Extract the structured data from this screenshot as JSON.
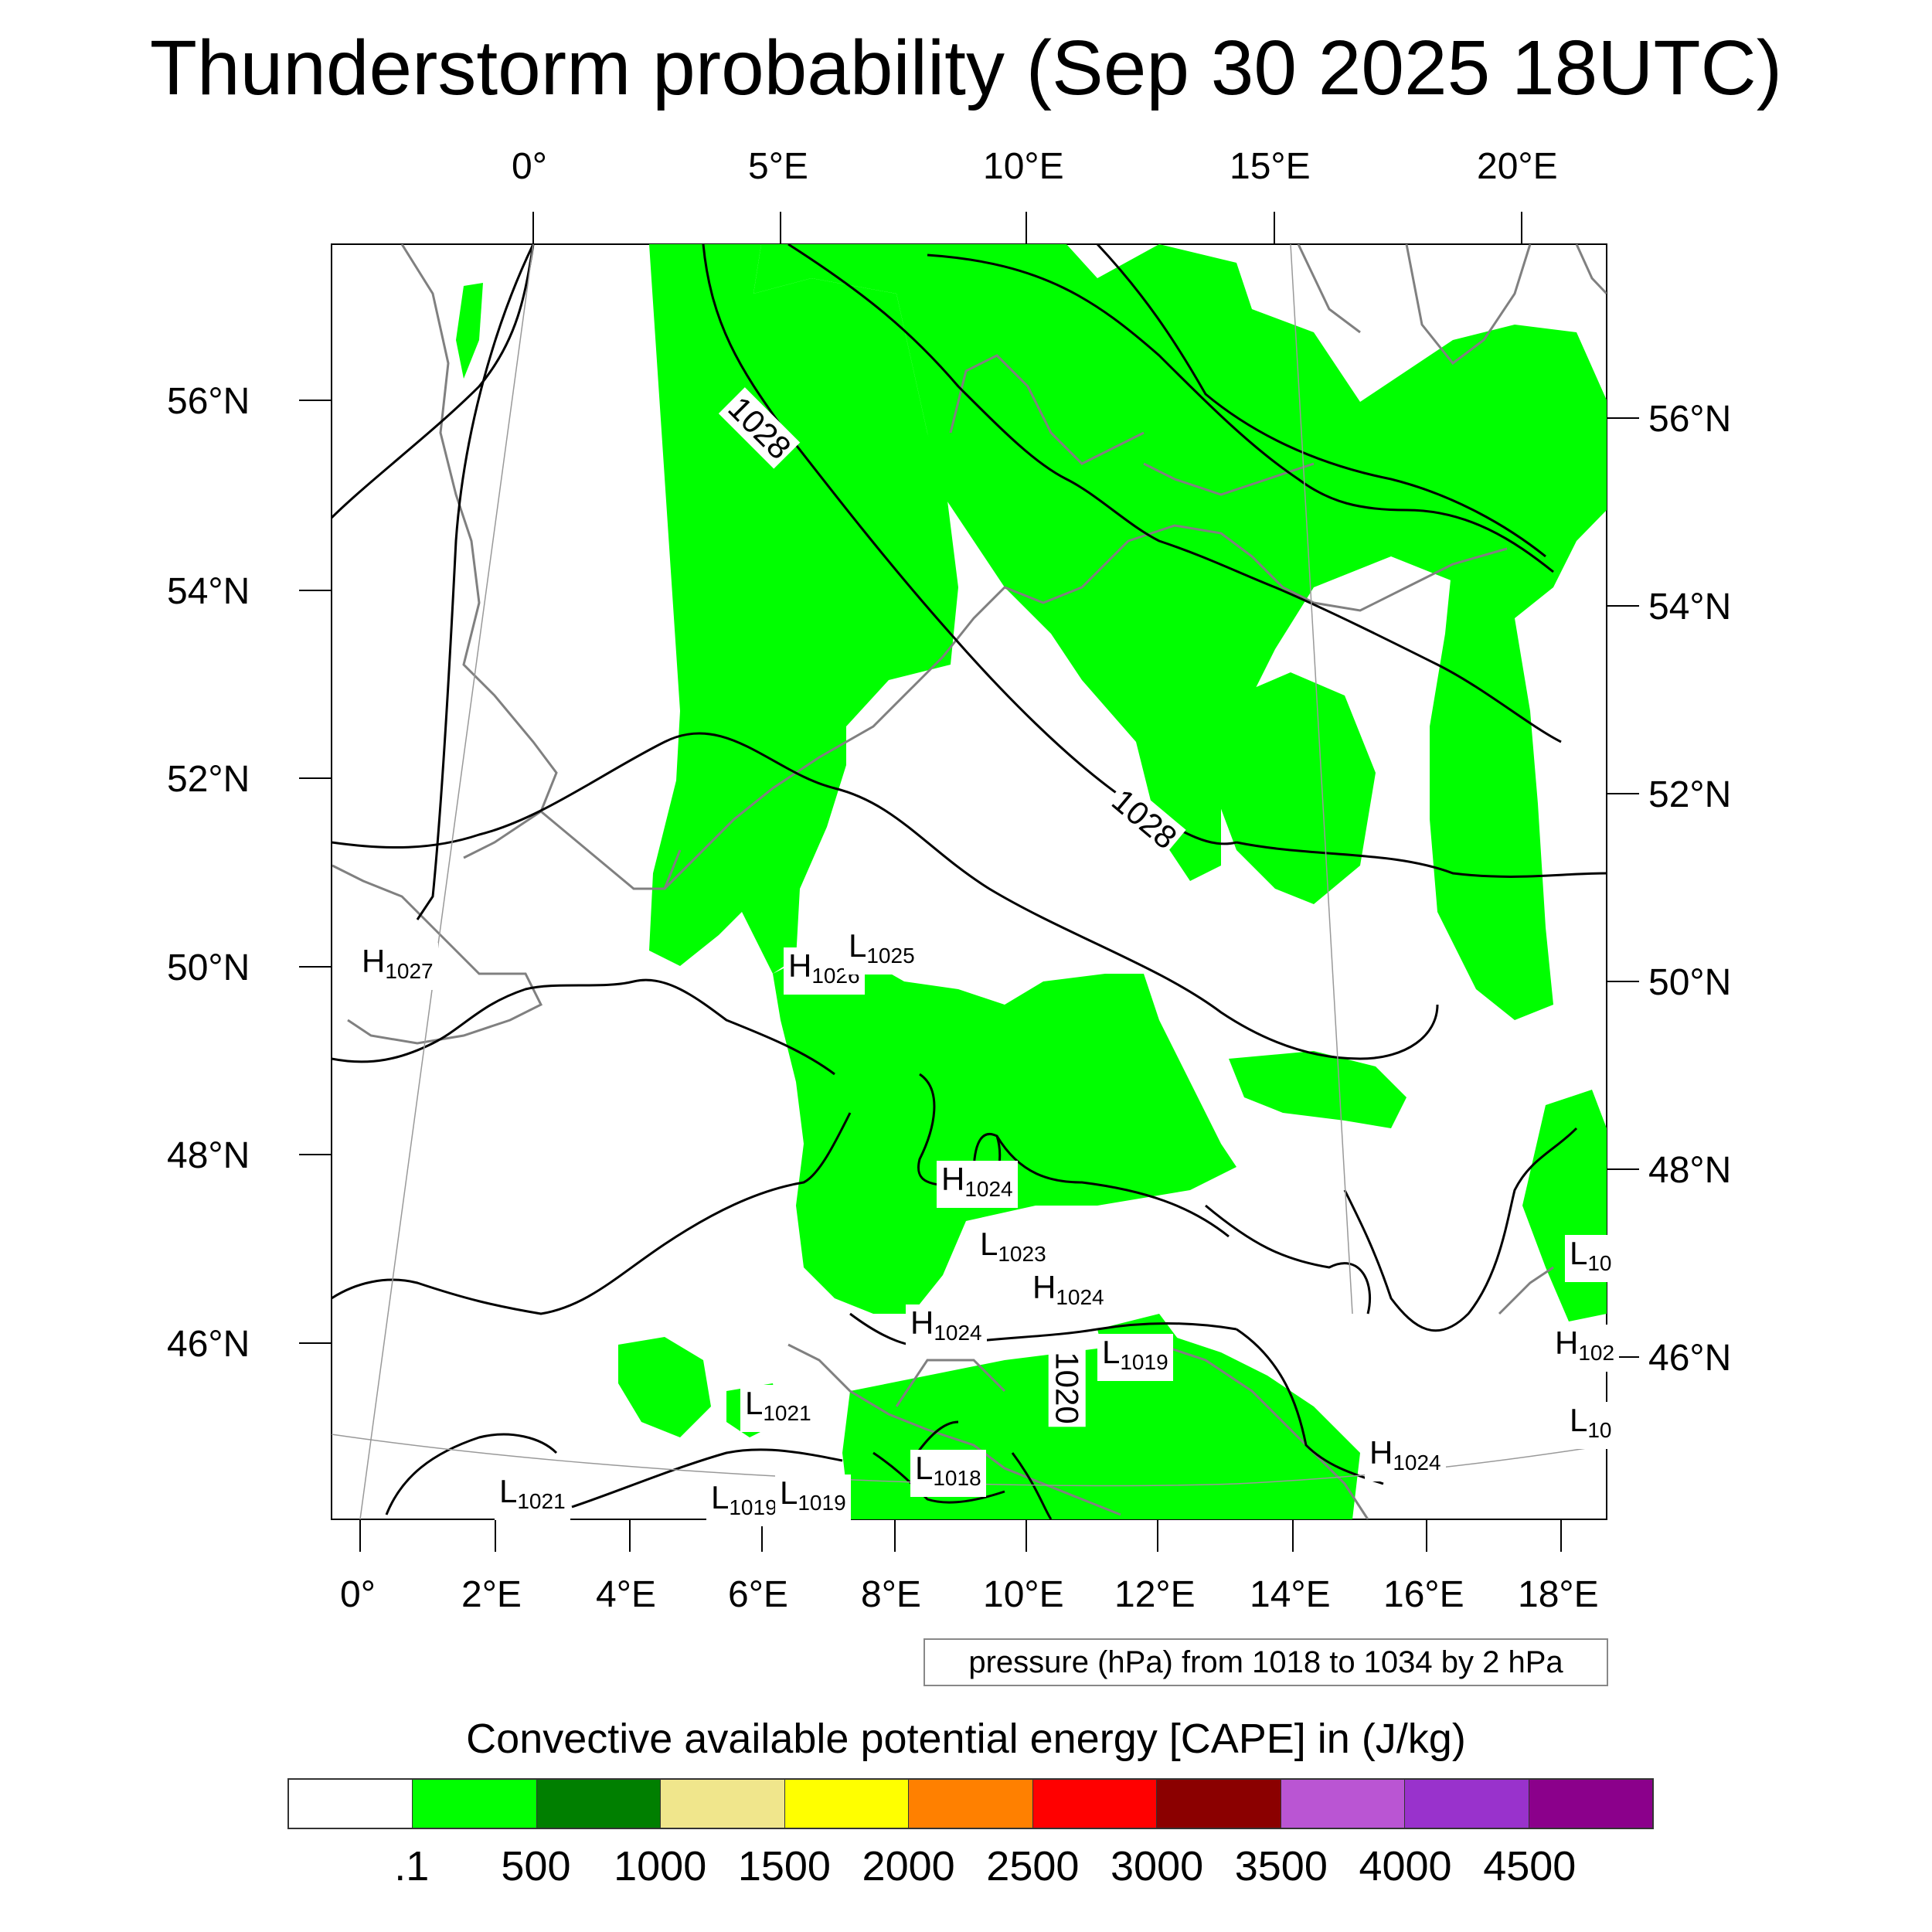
{
  "title": "Thunderstorm probability (Sep 30 2025 18UTC)",
  "map": {
    "top_lon_labels": [
      "0°",
      "5°E",
      "10°E",
      "15°E",
      "20°E"
    ],
    "left_lat_labels": [
      "56°N",
      "54°N",
      "52°N",
      "50°N",
      "48°N",
      "46°N"
    ],
    "right_lat_labels": [
      "56°N",
      "54°N",
      "52°N",
      "50°N",
      "48°N",
      "46°N"
    ],
    "bottom_lon_labels": [
      "0°",
      "2°E",
      "4°E",
      "6°E",
      "8°E",
      "10°E",
      "12°E",
      "14°E",
      "16°E",
      "18°E"
    ],
    "pressure_systems": [
      {
        "type": "H",
        "value": "1027"
      },
      {
        "type": "H",
        "value": "1026"
      },
      {
        "type": "L",
        "value": "1025"
      },
      {
        "type": "H",
        "value": "1024"
      },
      {
        "type": "L",
        "value": "1023"
      },
      {
        "type": "H",
        "value": "1024"
      },
      {
        "type": "H",
        "value": "1024"
      },
      {
        "type": "L",
        "value": "1019"
      },
      {
        "type": "L",
        "value": "1021"
      },
      {
        "type": "L",
        "value": "1018"
      },
      {
        "type": "L",
        "value": "1021"
      },
      {
        "type": "L",
        "value": "1019"
      },
      {
        "type": "L",
        "value": "1019"
      },
      {
        "type": "H",
        "value": "1024"
      },
      {
        "type": "L",
        "value": "10"
      },
      {
        "type": "H",
        "value": "102"
      },
      {
        "type": "L",
        "value": "10"
      }
    ],
    "isobar_labels": [
      "1028",
      "1028",
      "1020"
    ],
    "cape_fill_color": "#00ff00",
    "contour_note": "pressure (hPa) from 1018 to 1034 by 2 hPa"
  },
  "colorbar": {
    "title": "Convective available potential energy [CAPE] in (J/kg)",
    "colors": [
      "#ffffff",
      "#00ff00",
      "#007f00",
      "#f0e68c",
      "#ffff00",
      "#ff8000",
      "#ff0000",
      "#8b0000",
      "#ba55d3",
      "#9932cc",
      "#8b008b"
    ],
    "labels": [
      ".1",
      "500",
      "1000",
      "1500",
      "2000",
      "2500",
      "3000",
      "3500",
      "4000",
      "4500"
    ]
  }
}
